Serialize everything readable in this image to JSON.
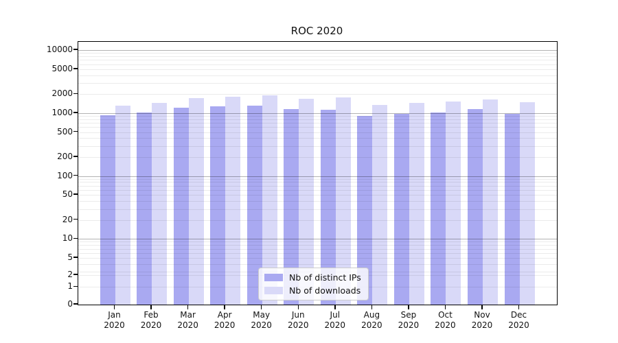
{
  "title": "ROC 2020",
  "chart_data": {
    "type": "bar",
    "title": "ROC 2020",
    "yscale": "symlog",
    "grid": "both",
    "legend_position": "lower center",
    "ylim": [
      0,
      13500
    ],
    "categories": [
      "Jan 2020",
      "Feb 2020",
      "Mar 2020",
      "Apr 2020",
      "May 2020",
      "Jun 2020",
      "Jul 2020",
      "Aug 2020",
      "Sep 2020",
      "Oct 2020",
      "Nov 2020",
      "Dec 2020"
    ],
    "y_ticks": [
      10000,
      5000,
      2000,
      1000,
      500,
      200,
      100,
      50,
      20,
      10,
      5,
      2,
      1,
      0
    ],
    "series": [
      {
        "name": "Nb of distinct IPs",
        "color": "#a9a9f1",
        "values": [
          920,
          1015,
          1210,
          1275,
          1320,
          1170,
          1130,
          910,
          975,
          1025,
          1150,
          985
        ]
      },
      {
        "name": "Nb of downloads",
        "color": "#d9d9f8",
        "values": [
          1315,
          1455,
          1750,
          1840,
          1900,
          1705,
          1780,
          1340,
          1465,
          1520,
          1650,
          1505
        ]
      }
    ]
  },
  "colors": {
    "major_grid": "rgba(0,0,0,0.30)",
    "minor_grid": "rgba(0,0,0,0.08)",
    "spine": "#000000",
    "text": "#111111"
  }
}
